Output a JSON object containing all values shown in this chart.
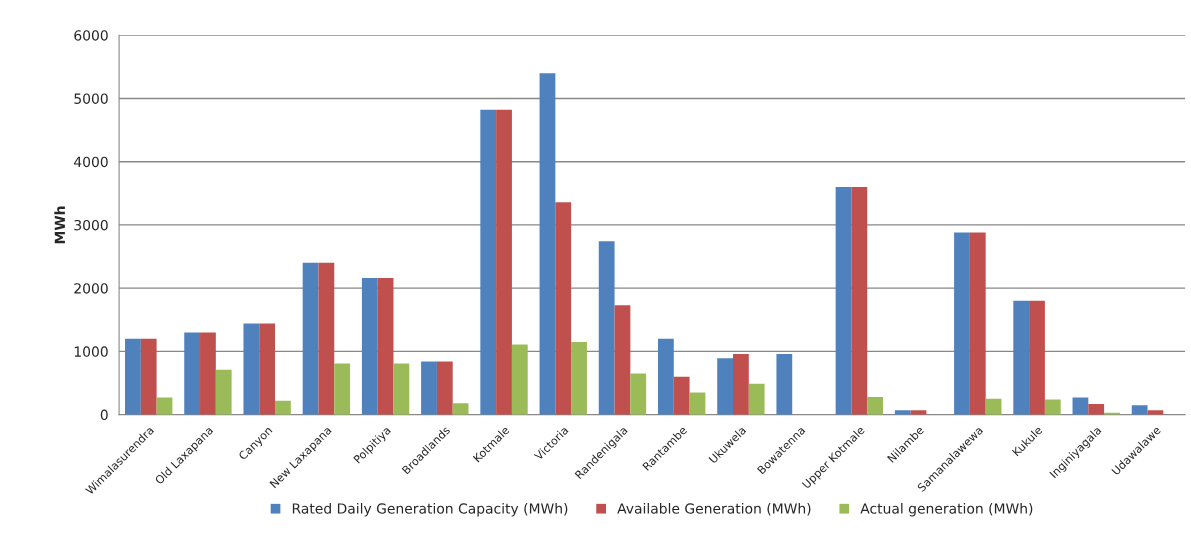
{
  "chart_data": {
    "type": "bar",
    "ylabel": "MWh",
    "categories": [
      "Wimalasurendra",
      "Old Laxapana",
      "Canyon",
      "New Laxapana",
      "Polpitiya",
      "Broadlands",
      "Kotmale",
      "Victoria",
      "Randenigala",
      "Rantambe",
      "Ukuwela",
      "Bowatenna",
      "Upper Kotmale",
      "Nilambe",
      "Samanalawewa",
      "Kukule",
      "Inginiyagala",
      "Udawalawe"
    ],
    "series": [
      {
        "name": "Rated Daily Generation Capacity (MWh)",
        "color": "#4f81bd",
        "values": [
          1200,
          1300,
          1440,
          2400,
          2160,
          840,
          4820,
          5400,
          2740,
          1200,
          890,
          960,
          3600,
          70,
          2880,
          1800,
          270,
          150
        ]
      },
      {
        "name": "Available Generation (MWh)",
        "color": "#c0504d",
        "values": [
          1200,
          1300,
          1440,
          2400,
          2160,
          840,
          4820,
          3360,
          1730,
          600,
          960,
          0,
          3600,
          70,
          2880,
          1800,
          170,
          70
        ]
      },
      {
        "name": "Actual generation (MWh)",
        "color": "#9bbb59",
        "values": [
          270,
          710,
          220,
          810,
          810,
          180,
          1110,
          1150,
          650,
          350,
          490,
          0,
          280,
          0,
          250,
          240,
          30,
          0
        ]
      }
    ],
    "ylim": [
      0,
      6000
    ],
    "yticks": [
      0,
      1000,
      2000,
      3000,
      4000,
      5000,
      6000
    ],
    "grid": "y",
    "legend": "bottom"
  }
}
